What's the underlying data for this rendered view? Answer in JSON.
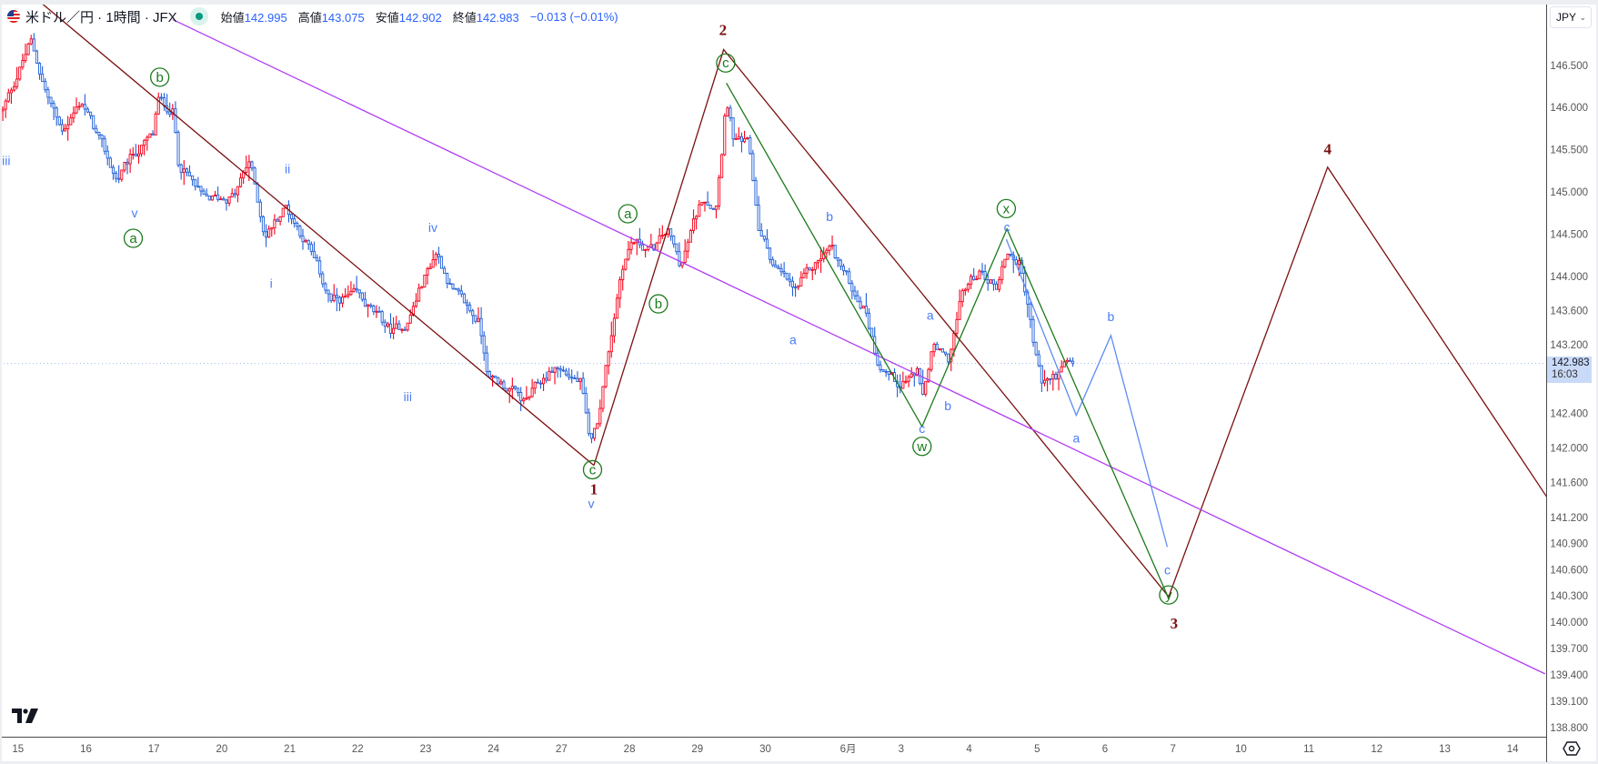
{
  "header": {
    "symbol_title": "米ドル／円 · 1時間 · JFX",
    "ohlc": [
      {
        "label": "始値",
        "value": "142.995"
      },
      {
        "label": "高値",
        "value": "143.075"
      },
      {
        "label": "安値",
        "value": "142.902"
      },
      {
        "label": "終値",
        "value": "142.983"
      }
    ],
    "change": "−0.013 (−0.01%)",
    "currency_button": "JPY",
    "market_status_icon": "market-open-dot",
    "flag_icon": "us-jp-flag"
  },
  "last_price": {
    "price": "142.983",
    "countdown": "16:03"
  },
  "colors": {
    "up": "#f7001a",
    "down": "#1f5fd8",
    "wave_blue": "#4a7cf7",
    "wave_green": "#1b7a1b",
    "wave_maroon": "#7b0f0f",
    "trend_purple": "#b13cf5",
    "projection_blue": "#5d8cf2"
  },
  "chart_data": {
    "type": "candlestick",
    "title": "米ドル／円 · 1時間 · JFX",
    "x_unit": "trading-day index (0 = 15th)",
    "bars_per_day": 24,
    "ylim": [
      138.65,
      147.3
    ],
    "y_scale": "log",
    "y_ticks": [
      "146.500",
      "146.000",
      "145.500",
      "145.000",
      "144.500",
      "144.000",
      "143.600",
      "143.200",
      "142.400",
      "142.000",
      "141.600",
      "141.200",
      "140.900",
      "140.600",
      "140.300",
      "140.000",
      "139.700",
      "139.400",
      "139.100",
      "138.800"
    ],
    "x_ticks": [
      {
        "label": "15",
        "day": -0.07
      },
      {
        "label": "16",
        "day": 0.93
      },
      {
        "label": "17",
        "day": 1.93
      },
      {
        "label": "20",
        "day": 2.93
      },
      {
        "label": "21",
        "day": 3.93
      },
      {
        "label": "22",
        "day": 4.93
      },
      {
        "label": "23",
        "day": 5.93
      },
      {
        "label": "24",
        "day": 6.93
      },
      {
        "label": "27",
        "day": 7.93
      },
      {
        "label": "28",
        "day": 8.93
      },
      {
        "label": "29",
        "day": 9.93
      },
      {
        "label": "30",
        "day": 10.93
      },
      {
        "label": "6月",
        "day": 12.15
      },
      {
        "label": "3",
        "day": 12.93
      },
      {
        "label": "4",
        "day": 13.93
      },
      {
        "label": "5",
        "day": 14.93
      },
      {
        "label": "6",
        "day": 15.93
      },
      {
        "label": "7",
        "day": 16.93
      },
      {
        "label": "10",
        "day": 17.93
      },
      {
        "label": "11",
        "day": 18.93
      },
      {
        "label": "12",
        "day": 19.93
      },
      {
        "label": "13",
        "day": 20.93
      },
      {
        "label": "14",
        "day": 21.93
      }
    ],
    "price_path": [
      [
        -0.28,
        145.96
      ],
      [
        0.13,
        146.79
      ],
      [
        0.35,
        146.2
      ],
      [
        0.58,
        145.72
      ],
      [
        0.88,
        146.08
      ],
      [
        1.4,
        145.13
      ],
      [
        1.63,
        145.43
      ],
      [
        1.93,
        145.66
      ],
      [
        2.0,
        146.08
      ],
      [
        2.23,
        145.96
      ],
      [
        2.3,
        145.37
      ],
      [
        2.68,
        144.89
      ],
      [
        3.13,
        144.95
      ],
      [
        3.35,
        145.37
      ],
      [
        3.58,
        144.48
      ],
      [
        3.88,
        144.83
      ],
      [
        4.18,
        144.42
      ],
      [
        4.55,
        143.71
      ],
      [
        4.93,
        143.77
      ],
      [
        5.45,
        143.35
      ],
      [
        5.68,
        143.47
      ],
      [
        5.9,
        143.94
      ],
      [
        6.1,
        144.3
      ],
      [
        6.35,
        143.82
      ],
      [
        6.73,
        143.47
      ],
      [
        6.88,
        142.82
      ],
      [
        7.18,
        142.7
      ],
      [
        7.4,
        142.52
      ],
      [
        7.63,
        142.76
      ],
      [
        7.85,
        142.94
      ],
      [
        8.23,
        142.76
      ],
      [
        8.35,
        142.05
      ],
      [
        8.45,
        142.22
      ],
      [
        8.68,
        143.35
      ],
      [
        8.83,
        144.12
      ],
      [
        8.98,
        144.42
      ],
      [
        9.28,
        144.3
      ],
      [
        9.5,
        144.54
      ],
      [
        9.7,
        144.12
      ],
      [
        9.88,
        144.6
      ],
      [
        10.03,
        144.95
      ],
      [
        10.21,
        144.83
      ],
      [
        10.3,
        145.48
      ],
      [
        10.36,
        146.14
      ],
      [
        10.48,
        145.6
      ],
      [
        10.7,
        145.54
      ],
      [
        10.85,
        144.54
      ],
      [
        11.08,
        144.12
      ],
      [
        11.38,
        143.82
      ],
      [
        11.6,
        144.06
      ],
      [
        11.9,
        144.36
      ],
      [
        12.13,
        144.0
      ],
      [
        12.43,
        143.59
      ],
      [
        12.58,
        143.05
      ],
      [
        12.88,
        142.76
      ],
      [
        13.18,
        142.88
      ],
      [
        13.25,
        142.52
      ],
      [
        13.4,
        143.17
      ],
      [
        13.63,
        142.99
      ],
      [
        13.85,
        143.82
      ],
      [
        14.08,
        144.06
      ],
      [
        14.35,
        143.89
      ],
      [
        14.5,
        144.3
      ],
      [
        14.68,
        144.16
      ],
      [
        14.8,
        143.71
      ],
      [
        14.9,
        143.17
      ],
      [
        15.01,
        142.76
      ],
      [
        15.2,
        142.82
      ],
      [
        15.35,
        142.94
      ],
      [
        15.46,
        142.983
      ]
    ],
    "drawings": [
      {
        "name": "maroon-trendline",
        "color": "wave_maroon",
        "points": [
          [
            0.3,
            147.24
          ],
          [
            8.42,
            141.8
          ]
        ]
      },
      {
        "name": "maroon-wave-path",
        "color": "wave_maroon",
        "points": [
          [
            8.42,
            141.8
          ],
          [
            10.33,
            146.69
          ],
          [
            16.88,
            140.29
          ],
          [
            19.22,
            145.29
          ],
          [
            22.45,
            141.43
          ]
        ]
      },
      {
        "name": "purple-trendline",
        "color": "trend_purple",
        "points": [
          [
            2.22,
            147.05
          ],
          [
            22.42,
            139.41
          ]
        ]
      },
      {
        "name": "green-wave-path",
        "color": "wave_green",
        "points": [
          [
            10.37,
            146.29
          ],
          [
            13.25,
            142.25
          ],
          [
            14.5,
            144.56
          ],
          [
            16.88,
            140.27
          ]
        ]
      },
      {
        "name": "blue-projection-path",
        "color": "projection_blue",
        "points": [
          [
            14.49,
            144.44
          ],
          [
            15.52,
            142.38
          ],
          [
            16.03,
            143.31
          ],
          [
            16.86,
            140.86
          ]
        ]
      }
    ],
    "wave_labels": [
      {
        "text": "iii",
        "style": "blue",
        "day": -0.23,
        "price": 145.37
      },
      {
        "text": "v",
        "style": "blue",
        "day": 1.66,
        "price": 144.75
      },
      {
        "text": "ii",
        "style": "blue",
        "day": 3.91,
        "price": 145.27
      },
      {
        "text": "i",
        "style": "blue",
        "day": 3.67,
        "price": 143.92
      },
      {
        "text": "iv",
        "style": "blue",
        "day": 6.05,
        "price": 144.58
      },
      {
        "text": "iii",
        "style": "blue",
        "day": 5.68,
        "price": 142.6
      },
      {
        "text": "v",
        "style": "blue",
        "day": 8.38,
        "price": 141.62
      },
      {
        "text": "a",
        "style": "blue",
        "day": 11.35,
        "price": 143.26
      },
      {
        "text": "b",
        "style": "blue",
        "day": 11.89,
        "price": 144.71
      },
      {
        "text": "a",
        "style": "blue",
        "day": 13.37,
        "price": 143.55
      },
      {
        "text": "b",
        "style": "blue",
        "day": 13.63,
        "price": 142.49
      },
      {
        "text": "c",
        "style": "blue",
        "day": 13.25,
        "price": 142.2
      },
      {
        "text": "c",
        "style": "blue",
        "day": 14.5,
        "price": 144.65
      },
      {
        "text": "b",
        "style": "blue",
        "day": 16.03,
        "price": 143.53
      },
      {
        "text": "a",
        "style": "blue",
        "day": 15.52,
        "price": 142.12
      },
      {
        "text": "c",
        "style": "blue",
        "day": 16.86,
        "price": 140.6
      },
      {
        "text": "b",
        "style": "green",
        "day": 2.03,
        "price": 146.36
      },
      {
        "text": "a",
        "style": "green",
        "day": 1.64,
        "price": 144.45
      },
      {
        "text": "c",
        "style": "green",
        "day": 8.4,
        "price": 141.75
      },
      {
        "text": "a",
        "style": "green",
        "day": 8.92,
        "price": 144.74
      },
      {
        "text": "b",
        "style": "green",
        "day": 9.37,
        "price": 143.68
      },
      {
        "text": "c",
        "style": "green",
        "day": 10.36,
        "price": 146.53
      },
      {
        "text": "w",
        "style": "green",
        "day": 13.25,
        "price": 142.02
      },
      {
        "text": "x",
        "style": "green",
        "day": 14.49,
        "price": 144.8
      },
      {
        "text": "y",
        "style": "green",
        "day": 16.88,
        "price": 140.31
      },
      {
        "text": "1",
        "style": "maroon",
        "day": 8.42,
        "price": 141.56
      },
      {
        "text": "2",
        "style": "maroon",
        "day": 10.32,
        "price": 146.93
      },
      {
        "text": "3",
        "style": "maroon",
        "day": 16.96,
        "price": 139.99
      },
      {
        "text": "4",
        "style": "maroon",
        "day": 19.22,
        "price": 145.51
      }
    ]
  }
}
